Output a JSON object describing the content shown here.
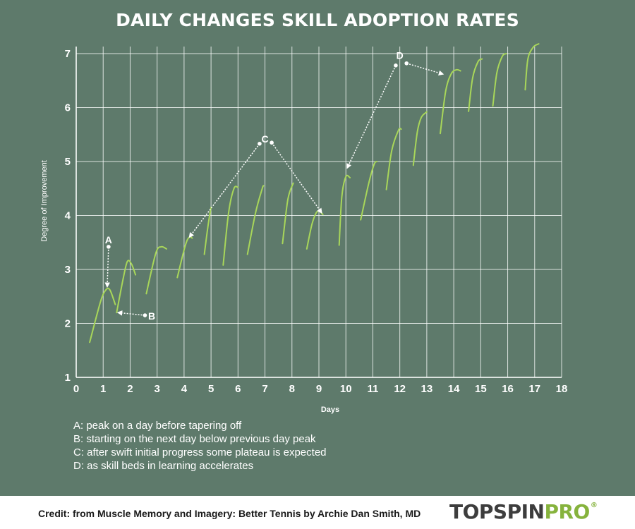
{
  "chart_data": {
    "type": "line",
    "title": "DAILY CHANGES SKILL ADOPTION RATES",
    "xlabel": "Days",
    "ylabel": "Degree of Improvement",
    "xlim": [
      0,
      18
    ],
    "ylim": [
      1,
      7.2
    ],
    "x_ticks": [
      0,
      1,
      2,
      3,
      4,
      5,
      6,
      7,
      8,
      9,
      10,
      11,
      12,
      13,
      14,
      15,
      16,
      17,
      18
    ],
    "y_ticks": [
      1,
      2,
      3,
      4,
      5,
      6,
      7
    ],
    "grid": true,
    "line_color": "#a8d65a",
    "segments": [
      [
        [
          0.5,
          1.65
        ],
        [
          0.9,
          2.4
        ],
        [
          1.1,
          2.62
        ],
        [
          1.25,
          2.62
        ],
        [
          1.45,
          2.35
        ]
      ],
      [
        [
          1.5,
          2.2
        ],
        [
          1.75,
          2.85
        ],
        [
          1.9,
          3.15
        ],
        [
          2.05,
          3.1
        ],
        [
          2.2,
          2.9
        ]
      ],
      [
        [
          2.6,
          2.55
        ],
        [
          2.95,
          3.3
        ],
        [
          3.15,
          3.42
        ],
        [
          3.35,
          3.38
        ]
      ],
      [
        [
          3.75,
          2.85
        ],
        [
          4.05,
          3.45
        ],
        [
          4.2,
          3.6
        ],
        [
          4.3,
          3.58
        ]
      ],
      [
        [
          4.75,
          3.28
        ],
        [
          4.9,
          3.85
        ],
        [
          5.0,
          4.15
        ]
      ],
      [
        [
          5.45,
          3.08
        ],
        [
          5.65,
          4.05
        ],
        [
          5.85,
          4.5
        ],
        [
          6.0,
          4.52
        ]
      ],
      [
        [
          6.35,
          3.28
        ],
        [
          6.65,
          4.05
        ],
        [
          6.9,
          4.5
        ],
        [
          6.95,
          4.55
        ]
      ],
      [
        [
          7.65,
          3.48
        ],
        [
          7.85,
          4.3
        ],
        [
          8.05,
          4.6
        ]
      ],
      [
        [
          8.55,
          3.38
        ],
        [
          8.75,
          3.85
        ],
        [
          8.95,
          4.08
        ],
        [
          9.15,
          4.02
        ]
      ],
      [
        [
          9.75,
          3.45
        ],
        [
          9.85,
          4.35
        ],
        [
          10.0,
          4.72
        ],
        [
          10.15,
          4.7
        ]
      ],
      [
        [
          10.55,
          3.92
        ],
        [
          10.85,
          4.6
        ],
        [
          11.05,
          4.95
        ],
        [
          11.15,
          5.0
        ]
      ],
      [
        [
          11.5,
          4.48
        ],
        [
          11.7,
          5.2
        ],
        [
          11.95,
          5.58
        ],
        [
          12.05,
          5.6
        ]
      ],
      [
        [
          12.5,
          4.93
        ],
        [
          12.65,
          5.55
        ],
        [
          12.8,
          5.82
        ],
        [
          13.0,
          5.92
        ]
      ],
      [
        [
          13.5,
          5.52
        ],
        [
          13.7,
          6.3
        ],
        [
          13.9,
          6.62
        ],
        [
          14.1,
          6.7
        ],
        [
          14.25,
          6.68
        ]
      ],
      [
        [
          14.55,
          5.93
        ],
        [
          14.7,
          6.55
        ],
        [
          14.9,
          6.85
        ],
        [
          15.05,
          6.9
        ]
      ],
      [
        [
          15.45,
          6.03
        ],
        [
          15.6,
          6.65
        ],
        [
          15.8,
          6.95
        ],
        [
          15.95,
          7.0
        ]
      ],
      [
        [
          16.65,
          6.33
        ],
        [
          16.75,
          6.9
        ],
        [
          16.95,
          7.12
        ],
        [
          17.15,
          7.18
        ]
      ]
    ],
    "annotations": [
      {
        "label": "A",
        "x": 1.2,
        "y": 3.55,
        "arrows": [
          {
            "from": [
              1.2,
              3.42
            ],
            "to": [
              1.15,
              2.68
            ]
          }
        ]
      },
      {
        "label": "B",
        "x": 2.8,
        "y": 2.14,
        "arrows": [
          {
            "from": [
              2.55,
              2.15
            ],
            "to": [
              1.55,
              2.2
            ]
          }
        ]
      },
      {
        "label": "C",
        "x": 7.0,
        "y": 5.42,
        "arrows": [
          {
            "from": [
              6.8,
              5.33
            ],
            "to": [
              4.2,
              3.6
            ]
          },
          {
            "from": [
              7.25,
              5.35
            ],
            "to": [
              9.1,
              4.05
            ]
          }
        ]
      },
      {
        "label": "D",
        "x": 12.0,
        "y": 6.97,
        "arrows": [
          {
            "from": [
              11.85,
              6.78
            ],
            "to": [
              10.05,
              4.88
            ]
          },
          {
            "from": [
              12.25,
              6.82
            ],
            "to": [
              13.6,
              6.62
            ]
          }
        ]
      }
    ]
  },
  "notes": [
    "A: peak on a day before tapering off",
    "B: starting on the next day below previous day peak",
    "C: after swift initial progress some plateau is expected",
    "D: as skill beds in learning accelerates"
  ],
  "footer": {
    "credit": "Credit: from Muscle Memory and Imagery: Better Tennis by Archie Dan Smith, MD",
    "brand_part1": "TOPSPIN",
    "brand_part2": "PRO",
    "brand_mark": "®"
  }
}
